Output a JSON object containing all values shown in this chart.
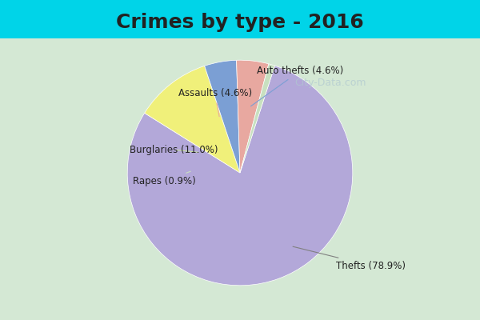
{
  "title": "Crimes by type - 2016",
  "labels": [
    "Thefts",
    "Burglaries",
    "Auto thefts",
    "Assaults",
    "Rapes"
  ],
  "values": [
    78.9,
    11.0,
    4.6,
    4.6,
    0.9
  ],
  "colors": [
    "#b3a8d9",
    "#f0f07a",
    "#7b9fd4",
    "#e8a8a0",
    "#c8e0c0"
  ],
  "label_texts": [
    "Thefts (78.9%)",
    "Burglaries (11.0%)",
    "Auto thefts (4.6%)",
    "Assaults (4.6%)",
    "Rapes (0.9%)"
  ],
  "background_top": "#00d4e8",
  "background_main": "#d4e8d4",
  "title_fontsize": 18,
  "watermark": "City-Data.com"
}
